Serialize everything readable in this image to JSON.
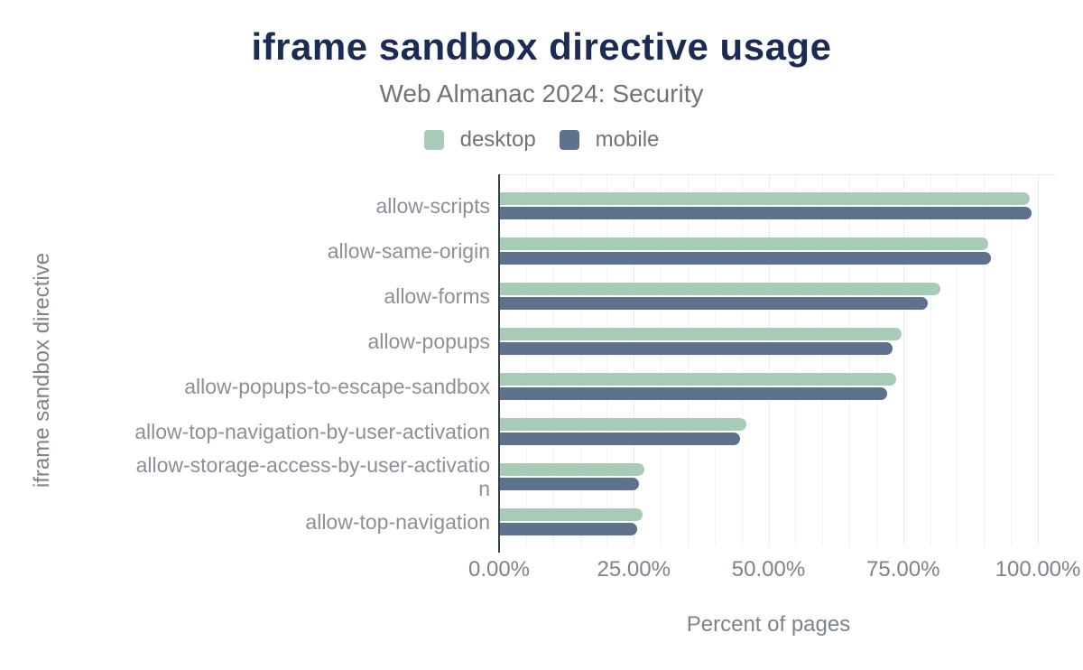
{
  "colors": {
    "background": "#ffffff",
    "title": "#1b2b52",
    "subtitle_gray": "#6f7478",
    "axis_text_gray": "#7d838b",
    "category_text_gray": "#8a9096",
    "axis_line": "#343e4b",
    "desktop_green": "#a8cbb8",
    "mobile_blue": "#5e718d"
  },
  "chart_data": {
    "type": "bar",
    "orientation": "horizontal",
    "title": "iframe sandbox directive usage",
    "subtitle": "Web Almanac 2024: Security",
    "xlabel": "Percent of pages",
    "ylabel": "iframe sandbox directive",
    "xlim": [
      0,
      100
    ],
    "x_ticks": [
      "0.00%",
      "25.00%",
      "50.00%",
      "75.00%",
      "100.00%"
    ],
    "grid": "vertical gridlines every 5%, no horizontal gridlines",
    "legend_position": "top-center",
    "categories": [
      "allow-scripts",
      "allow-same-origin",
      "allow-forms",
      "allow-popups",
      "allow-popups-to-escape-sandbox",
      "allow-top-navigation-by-user-activation",
      "allow-storage-access-by-user-activation",
      "allow-top-navigation"
    ],
    "series": [
      {
        "name": "desktop",
        "color": "#a8cbb8",
        "values": [
          98.5,
          90.8,
          81.9,
          74.7,
          73.7,
          45.9,
          27.0,
          26.6
        ]
      },
      {
        "name": "mobile",
        "color": "#5e718d",
        "values": [
          98.8,
          91.3,
          79.6,
          73.0,
          72.0,
          44.7,
          26.0,
          25.6
        ]
      }
    ]
  }
}
